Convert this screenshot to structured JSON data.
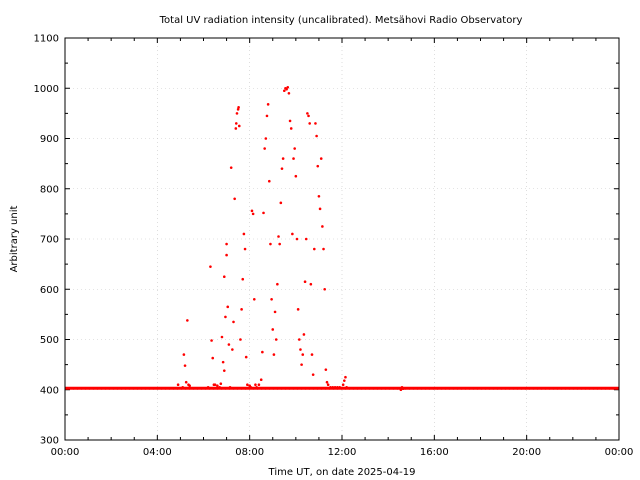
{
  "chart_data": {
    "type": "scatter",
    "title": "Total UV radiation intensity (uncalibrated). Metsähovi Radio Observatory",
    "xlabel": "Time UT, on date 2025-04-19",
    "ylabel": "Arbitrary unit",
    "xlim": [
      0,
      24
    ],
    "ylim": [
      300,
      1100
    ],
    "x_ticks": [
      0,
      4,
      8,
      12,
      16,
      20,
      24
    ],
    "x_tick_labels": [
      "00:00",
      "04:00",
      "08:00",
      "12:00",
      "16:00",
      "20:00",
      "00:00"
    ],
    "y_ticks": [
      300,
      400,
      500,
      600,
      700,
      800,
      900,
      1000,
      1100
    ],
    "y_tick_labels": [
      "300",
      "400",
      "500",
      "600",
      "700",
      "800",
      "900",
      "1000",
      "1100"
    ],
    "grid": true,
    "marker_color": "#ff0000",
    "baseline": {
      "value": 403,
      "x_range": [
        0,
        24
      ]
    },
    "series": [
      {
        "points": [
          [
            4.9,
            410
          ],
          [
            5.1,
            405
          ],
          [
            5.15,
            470
          ],
          [
            5.2,
            448
          ],
          [
            5.25,
            415
          ],
          [
            5.3,
            538
          ],
          [
            5.35,
            410
          ],
          [
            5.4,
            408
          ],
          [
            6.2,
            405
          ],
          [
            6.3,
            645
          ],
          [
            6.35,
            498
          ],
          [
            6.4,
            463
          ],
          [
            6.45,
            410
          ],
          [
            6.5,
            410
          ],
          [
            6.6,
            408
          ],
          [
            6.7,
            405
          ],
          [
            6.75,
            412
          ],
          [
            6.8,
            505
          ],
          [
            6.85,
            455
          ],
          [
            6.9,
            438
          ],
          [
            6.9,
            625
          ],
          [
            6.95,
            545
          ],
          [
            7.0,
            668
          ],
          [
            7.0,
            690
          ],
          [
            7.05,
            565
          ],
          [
            7.1,
            490
          ],
          [
            7.15,
            405
          ],
          [
            7.2,
            842
          ],
          [
            7.25,
            480
          ],
          [
            7.3,
            535
          ],
          [
            7.35,
            780
          ],
          [
            7.4,
            920
          ],
          [
            7.42,
            930
          ],
          [
            7.45,
            950
          ],
          [
            7.5,
            958
          ],
          [
            7.52,
            962
          ],
          [
            7.55,
            925
          ],
          [
            7.6,
            500
          ],
          [
            7.65,
            560
          ],
          [
            7.7,
            620
          ],
          [
            7.75,
            710
          ],
          [
            7.8,
            680
          ],
          [
            7.85,
            465
          ],
          [
            7.9,
            410
          ],
          [
            8.0,
            408
          ],
          [
            8.05,
            405
          ],
          [
            8.1,
            756
          ],
          [
            8.15,
            750
          ],
          [
            8.2,
            580
          ],
          [
            8.25,
            410
          ],
          [
            8.3,
            405
          ],
          [
            8.4,
            410
          ],
          [
            8.5,
            420
          ],
          [
            8.55,
            475
          ],
          [
            8.6,
            752
          ],
          [
            8.65,
            880
          ],
          [
            8.7,
            900
          ],
          [
            8.75,
            945
          ],
          [
            8.8,
            968
          ],
          [
            8.85,
            815
          ],
          [
            8.9,
            690
          ],
          [
            8.95,
            580
          ],
          [
            9.0,
            520
          ],
          [
            9.05,
            470
          ],
          [
            9.1,
            555
          ],
          [
            9.15,
            500
          ],
          [
            9.2,
            610
          ],
          [
            9.25,
            705
          ],
          [
            9.3,
            690
          ],
          [
            9.35,
            772
          ],
          [
            9.4,
            840
          ],
          [
            9.45,
            860
          ],
          [
            9.5,
            995
          ],
          [
            9.55,
            1000
          ],
          [
            9.6,
            998
          ],
          [
            9.65,
            1002
          ],
          [
            9.7,
            990
          ],
          [
            9.75,
            935
          ],
          [
            9.8,
            920
          ],
          [
            9.85,
            710
          ],
          [
            9.9,
            860
          ],
          [
            9.95,
            880
          ],
          [
            10.0,
            825
          ],
          [
            10.05,
            700
          ],
          [
            10.1,
            560
          ],
          [
            10.15,
            500
          ],
          [
            10.2,
            480
          ],
          [
            10.25,
            450
          ],
          [
            10.3,
            470
          ],
          [
            10.35,
            510
          ],
          [
            10.4,
            615
          ],
          [
            10.45,
            700
          ],
          [
            10.5,
            950
          ],
          [
            10.55,
            945
          ],
          [
            10.6,
            930
          ],
          [
            10.65,
            610
          ],
          [
            10.7,
            470
          ],
          [
            10.75,
            430
          ],
          [
            10.8,
            680
          ],
          [
            10.85,
            930
          ],
          [
            10.9,
            905
          ],
          [
            10.95,
            845
          ],
          [
            11.0,
            785
          ],
          [
            11.05,
            760
          ],
          [
            11.1,
            860
          ],
          [
            11.15,
            725
          ],
          [
            11.2,
            680
          ],
          [
            11.25,
            600
          ],
          [
            11.3,
            440
          ],
          [
            11.35,
            415
          ],
          [
            11.4,
            410
          ],
          [
            11.5,
            405
          ],
          [
            11.6,
            405
          ],
          [
            11.7,
            405
          ],
          [
            11.8,
            405
          ],
          [
            11.9,
            405
          ],
          [
            12.05,
            410
          ],
          [
            12.1,
            418
          ],
          [
            12.15,
            425
          ],
          [
            12.2,
            405
          ],
          [
            14.55,
            400
          ],
          [
            14.6,
            405
          ],
          [
            14.65,
            402
          ]
        ]
      }
    ]
  }
}
